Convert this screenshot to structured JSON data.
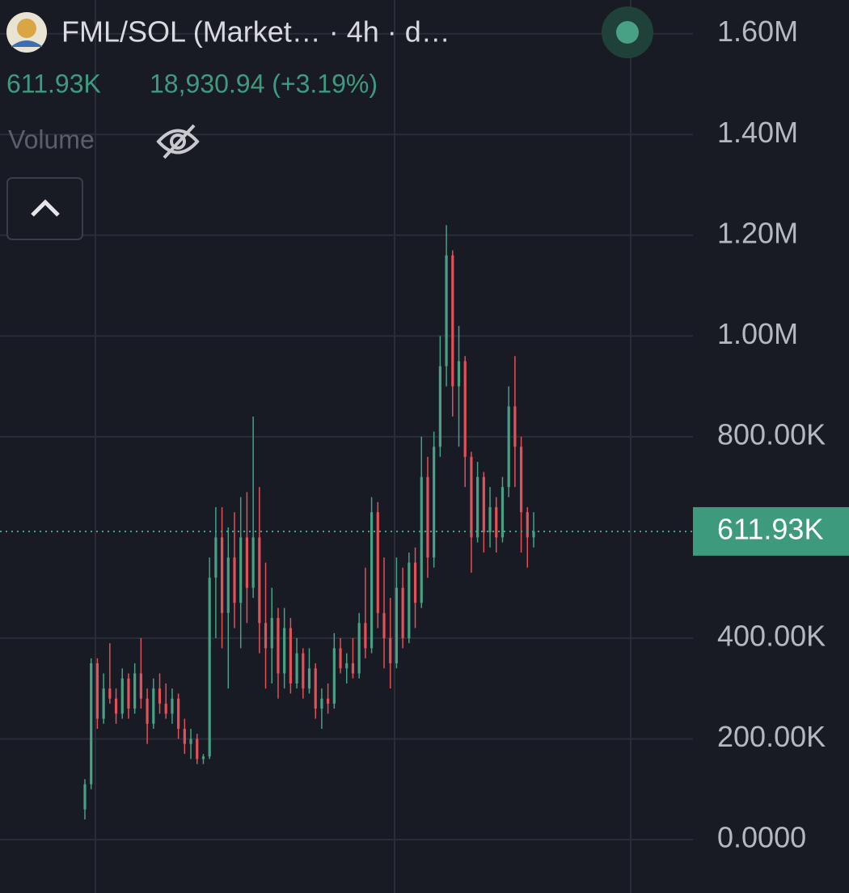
{
  "chart_data": {
    "type": "candlestick",
    "title": "FML/SOL (Market… · 4h · d…",
    "price": "611.93K",
    "change": "18,930.94 (+3.19%)",
    "volume_label": "Volume",
    "last_price": {
      "value": 611930,
      "label": "611.93K"
    },
    "up_color": "#48a085",
    "down_color": "#e2505a",
    "ylim": [
      -106000,
      1667000
    ],
    "yticks": [
      {
        "value": 0,
        "label": "0.0000"
      },
      {
        "value": 200000,
        "label": "200.00K"
      },
      {
        "value": 400000,
        "label": "400.00K"
      },
      {
        "value": 800000,
        "label": "800.00K"
      },
      {
        "value": 1000000,
        "label": "1.00M"
      },
      {
        "value": 1200000,
        "label": "1.20M"
      },
      {
        "value": 1400000,
        "label": "1.40M"
      },
      {
        "value": 1600000,
        "label": "1.60M"
      }
    ],
    "grid": true,
    "open": [
      60000,
      110000,
      350000,
      240000,
      300000,
      280000,
      250000,
      320000,
      260000,
      330000,
      280000,
      230000,
      300000,
      270000,
      250000,
      280000,
      220000,
      190000,
      200000,
      160000,
      165000,
      520000,
      600000,
      450000,
      560000,
      470000,
      600000,
      500000,
      600000,
      430000,
      380000,
      440000,
      330000,
      420000,
      310000,
      370000,
      300000,
      340000,
      260000,
      280000,
      270000,
      380000,
      340000,
      350000,
      330000,
      430000,
      380000,
      650000,
      450000,
      400000,
      350000,
      500000,
      400000,
      550000,
      470000,
      720000,
      560000,
      780000,
      940000,
      1160000,
      900000,
      950000,
      760000,
      600000,
      720000,
      610000,
      660000,
      600000,
      700000,
      860000,
      780000,
      650000,
      600000
    ],
    "high": [
      120000,
      360000,
      360000,
      330000,
      390000,
      300000,
      340000,
      330000,
      350000,
      400000,
      300000,
      320000,
      330000,
      310000,
      300000,
      290000,
      240000,
      220000,
      210000,
      170000,
      560000,
      660000,
      660000,
      620000,
      650000,
      680000,
      690000,
      840000,
      700000,
      550000,
      500000,
      460000,
      460000,
      440000,
      400000,
      380000,
      380000,
      350000,
      300000,
      310000,
      410000,
      400000,
      370000,
      400000,
      450000,
      540000,
      680000,
      670000,
      560000,
      480000,
      560000,
      540000,
      570000,
      580000,
      800000,
      760000,
      810000,
      1000000,
      1220000,
      1170000,
      1020000,
      960000,
      770000,
      750000,
      730000,
      700000,
      680000,
      720000,
      900000,
      960000,
      800000,
      660000,
      650000
    ],
    "low": [
      40000,
      100000,
      220000,
      230000,
      270000,
      230000,
      240000,
      240000,
      250000,
      260000,
      190000,
      220000,
      250000,
      240000,
      230000,
      200000,
      170000,
      160000,
      150000,
      150000,
      160000,
      400000,
      380000,
      300000,
      420000,
      380000,
      430000,
      480000,
      370000,
      300000,
      310000,
      280000,
      300000,
      290000,
      300000,
      280000,
      290000,
      240000,
      220000,
      250000,
      260000,
      330000,
      310000,
      320000,
      320000,
      360000,
      370000,
      420000,
      340000,
      300000,
      340000,
      380000,
      390000,
      420000,
      460000,
      520000,
      540000,
      760000,
      900000,
      840000,
      780000,
      700000,
      530000,
      590000,
      570000,
      580000,
      570000,
      590000,
      680000,
      700000,
      570000,
      540000,
      580000
    ],
    "close": [
      110000,
      350000,
      240000,
      300000,
      280000,
      250000,
      320000,
      260000,
      330000,
      280000,
      230000,
      300000,
      270000,
      250000,
      280000,
      220000,
      190000,
      200000,
      160000,
      165000,
      520000,
      600000,
      450000,
      560000,
      470000,
      600000,
      500000,
      600000,
      430000,
      380000,
      440000,
      330000,
      420000,
      310000,
      370000,
      300000,
      340000,
      260000,
      280000,
      270000,
      380000,
      340000,
      350000,
      330000,
      430000,
      380000,
      650000,
      450000,
      400000,
      350000,
      500000,
      400000,
      550000,
      470000,
      720000,
      560000,
      780000,
      940000,
      1160000,
      900000,
      950000,
      760000,
      600000,
      720000,
      610000,
      660000,
      600000,
      700000,
      860000,
      780000,
      650000,
      600000,
      612000
    ]
  }
}
